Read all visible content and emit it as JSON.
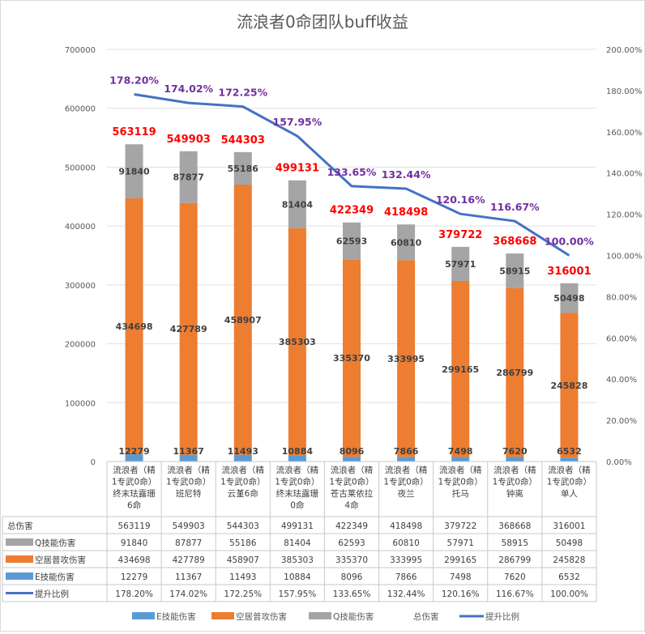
{
  "chart_data": {
    "type": "bar",
    "title": "流浪者0命团队buff收益",
    "categories": [
      [
        "流浪者（精",
        "1专武0命）",
        "终末珐露珊",
        "6命"
      ],
      [
        "流浪者（精",
        "1专武0命）",
        "班尼特"
      ],
      [
        "流浪者（精",
        "1专武0命）",
        "云堇6命"
      ],
      [
        "流浪者（精",
        "1专武0命）",
        "终末珐露珊",
        "0命"
      ],
      [
        "流浪者（精",
        "1专武0命）",
        "苍古莱依拉",
        "4命"
      ],
      [
        "流浪者（精",
        "1专武0命）",
        "夜兰"
      ],
      [
        "流浪者（精",
        "1专武0命）",
        "托马"
      ],
      [
        "流浪者（精",
        "1专武0命）",
        "钟离"
      ],
      [
        "流浪者（精",
        "1专武0命）",
        "单人"
      ]
    ],
    "series": [
      {
        "name": "E技能伤害",
        "color": "#5b9bd5",
        "values": [
          12279,
          11367,
          11493,
          10884,
          8096,
          7866,
          7498,
          7620,
          6532
        ]
      },
      {
        "name": "空居普攻伤害",
        "color": "#ed7d31",
        "values": [
          434698,
          427789,
          458907,
          385303,
          335370,
          333995,
          299165,
          286799,
          245828
        ]
      },
      {
        "name": "Q技能伤害",
        "color": "#a5a5a5",
        "values": [
          91840,
          87877,
          55186,
          81404,
          62593,
          60810,
          57971,
          58915,
          50498
        ]
      },
      {
        "name": "总伤害",
        "values": [
          563119,
          549903,
          544303,
          499131,
          422349,
          418498,
          379722,
          368668,
          316001
        ]
      },
      {
        "name": "提升比例",
        "color": "#4472c4",
        "values": [
          "178.20%",
          "174.02%",
          "172.25%",
          "157.95%",
          "133.65%",
          "132.44%",
          "120.16%",
          "116.67%",
          "100.00%"
        ]
      }
    ],
    "ylim": [
      0,
      700000
    ],
    "y2lim": [
      0,
      2.0
    ],
    "yticks": [
      "0",
      "100000",
      "200000",
      "300000",
      "400000",
      "500000",
      "600000",
      "700000"
    ],
    "y2ticks": [
      "0.00%",
      "20.00%",
      "40.00%",
      "60.00%",
      "80.00%",
      "100.00%",
      "120.00%",
      "140.00%",
      "160.00%",
      "180.00%",
      "200.00%"
    ],
    "table_rows": [
      "总伤害",
      "Q技能伤害",
      "空居普攻伤害",
      "E技能伤害",
      "提升比例"
    ],
    "legend": [
      "E技能伤害",
      "空居普攻伤害",
      "Q技能伤害",
      "总伤害",
      "提升比例"
    ],
    "legend_position": "bottom",
    "grid": true
  }
}
